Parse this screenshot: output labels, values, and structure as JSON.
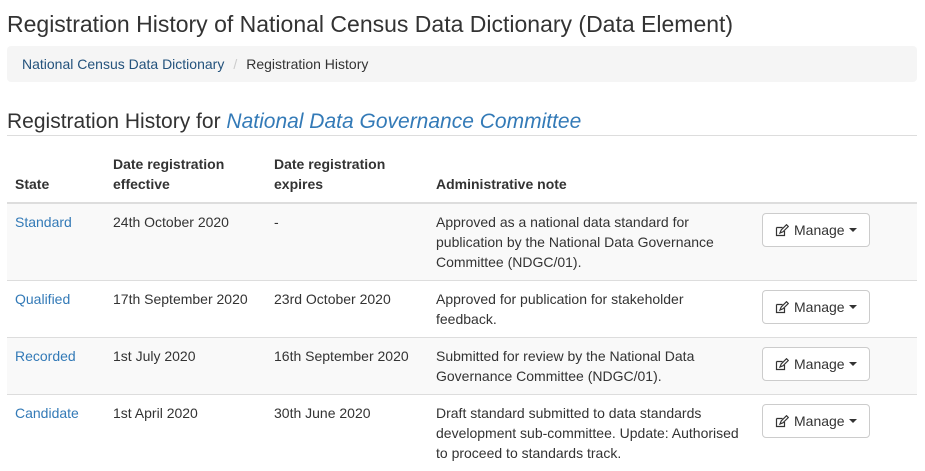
{
  "page": {
    "title": "Registration History of National Census Data Dictionary (Data Element)"
  },
  "breadcrumb": {
    "items": [
      {
        "label": "National Census Data Dictionary"
      },
      {
        "label": "Registration History"
      }
    ],
    "separator": "/"
  },
  "section": {
    "heading_prefix": "Registration History for",
    "authority": "National Data Governance Committee"
  },
  "table": {
    "headers": {
      "state": "State",
      "effective": "Date registration effective",
      "expires": "Date registration expires",
      "note": "Administrative note"
    },
    "rows": [
      {
        "state": "Standard",
        "effective": "24th October 2020",
        "expires": "-",
        "note": "Approved as a national data standard for publication by the National Data Governance Committee (NDGC/01).",
        "action": "Manage"
      },
      {
        "state": "Qualified",
        "effective": "17th September 2020",
        "expires": "23rd October 2020",
        "note": "Approved for publication for stakeholder feedback.",
        "action": "Manage"
      },
      {
        "state": "Recorded",
        "effective": "1st July 2020",
        "expires": "16th September 2020",
        "note": "Submitted for review by the National Data Governance Committee (NDGC/01).",
        "action": "Manage"
      },
      {
        "state": "Candidate",
        "effective": "1st April 2020",
        "expires": "30th June 2020",
        "note": "Draft standard submitted to data standards development sub-committee. Update: Authorised to proceed to standards track.",
        "action": "Manage"
      }
    ]
  },
  "icons": {
    "manage": "edit-icon",
    "dropdown": "caret-down-icon"
  },
  "colors": {
    "link": "#337ab7",
    "breadcrumb_link": "#23527c",
    "breadcrumb_bg": "#f5f5f5",
    "stripe": "#f9f9f9",
    "border": "#dddddd"
  }
}
